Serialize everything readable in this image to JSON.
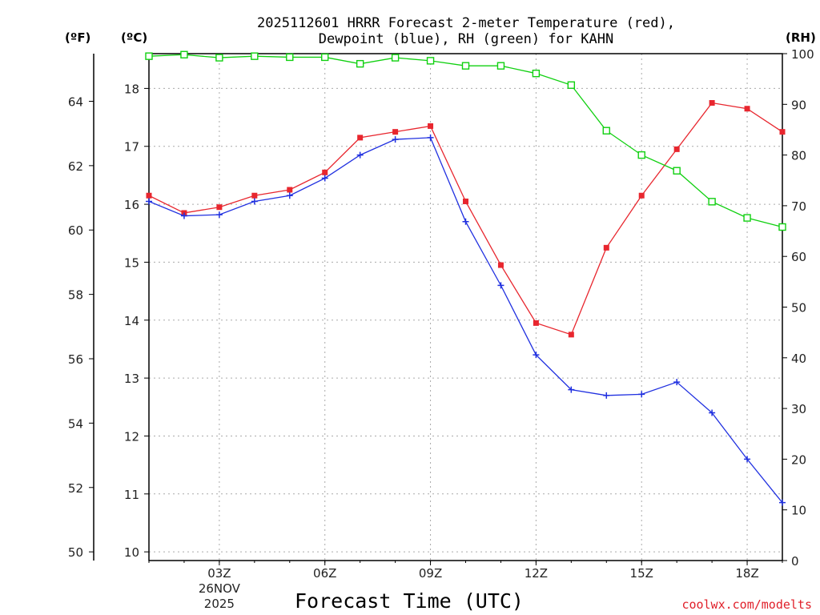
{
  "chart_data": {
    "type": "line",
    "title_line1": "2025112601 HRRR Forecast 2-meter Temperature (red),",
    "title_line2": "Dewpoint (blue), RH (green) for KAHN",
    "xlabel": "Forecast Time (UTC)",
    "credit": "coolwx.com/modelts",
    "units": {
      "fahrenheit": "(ºF)",
      "celsius": "(ºC)",
      "rh": "(RH)"
    },
    "x_hours": [
      1,
      2,
      3,
      4,
      5,
      6,
      7,
      8,
      9,
      10,
      11,
      12,
      13,
      14,
      15,
      16,
      17,
      18,
      19
    ],
    "x_range": [
      1,
      19
    ],
    "x_ticks": [
      {
        "hour": 3,
        "label": "03Z"
      },
      {
        "hour": 6,
        "label": "06Z"
      },
      {
        "hour": 9,
        "label": "09Z"
      },
      {
        "hour": 12,
        "label": "12Z"
      },
      {
        "hour": 15,
        "label": "15Z"
      },
      {
        "hour": 18,
        "label": "18Z"
      }
    ],
    "date_label": {
      "hour": 3,
      "line1": "26NOV",
      "line2": "2025"
    },
    "celsius_range": [
      9.85,
      18.6
    ],
    "celsius_ticks": [
      10,
      11,
      12,
      13,
      14,
      15,
      16,
      17,
      18
    ],
    "fahrenheit_ticks": [
      50,
      52,
      54,
      56,
      58,
      60,
      62,
      64
    ],
    "rh_range": [
      0,
      100
    ],
    "rh_ticks": [
      0,
      10,
      20,
      30,
      40,
      50,
      60,
      70,
      80,
      90,
      100
    ],
    "series": [
      {
        "name": "Temperature",
        "axis": "celsius",
        "color": "#e8262e",
        "marker": "filled-square",
        "values": [
          16.15,
          15.85,
          15.95,
          16.15,
          16.25,
          16.55,
          17.15,
          17.25,
          17.35,
          16.05,
          14.95,
          13.95,
          13.75,
          15.25,
          16.15,
          16.95,
          17.75,
          17.65,
          17.25
        ]
      },
      {
        "name": "Dewpoint",
        "axis": "celsius",
        "color": "#2030e0",
        "marker": "plus",
        "values": [
          16.05,
          15.8,
          15.82,
          16.05,
          16.15,
          16.45,
          16.85,
          17.12,
          17.15,
          15.7,
          14.6,
          13.4,
          12.8,
          12.7,
          12.72,
          12.93,
          12.4,
          11.6,
          10.85
        ]
      },
      {
        "name": "RH",
        "axis": "rh",
        "color": "#10d010",
        "marker": "open-square",
        "values": [
          99.5,
          99.8,
          99.2,
          99.5,
          99.3,
          99.3,
          98.0,
          99.2,
          98.6,
          97.6,
          97.6,
          96.1,
          93.8,
          84.8,
          80.0,
          76.9,
          70.8,
          67.6,
          65.8
        ]
      }
    ]
  }
}
